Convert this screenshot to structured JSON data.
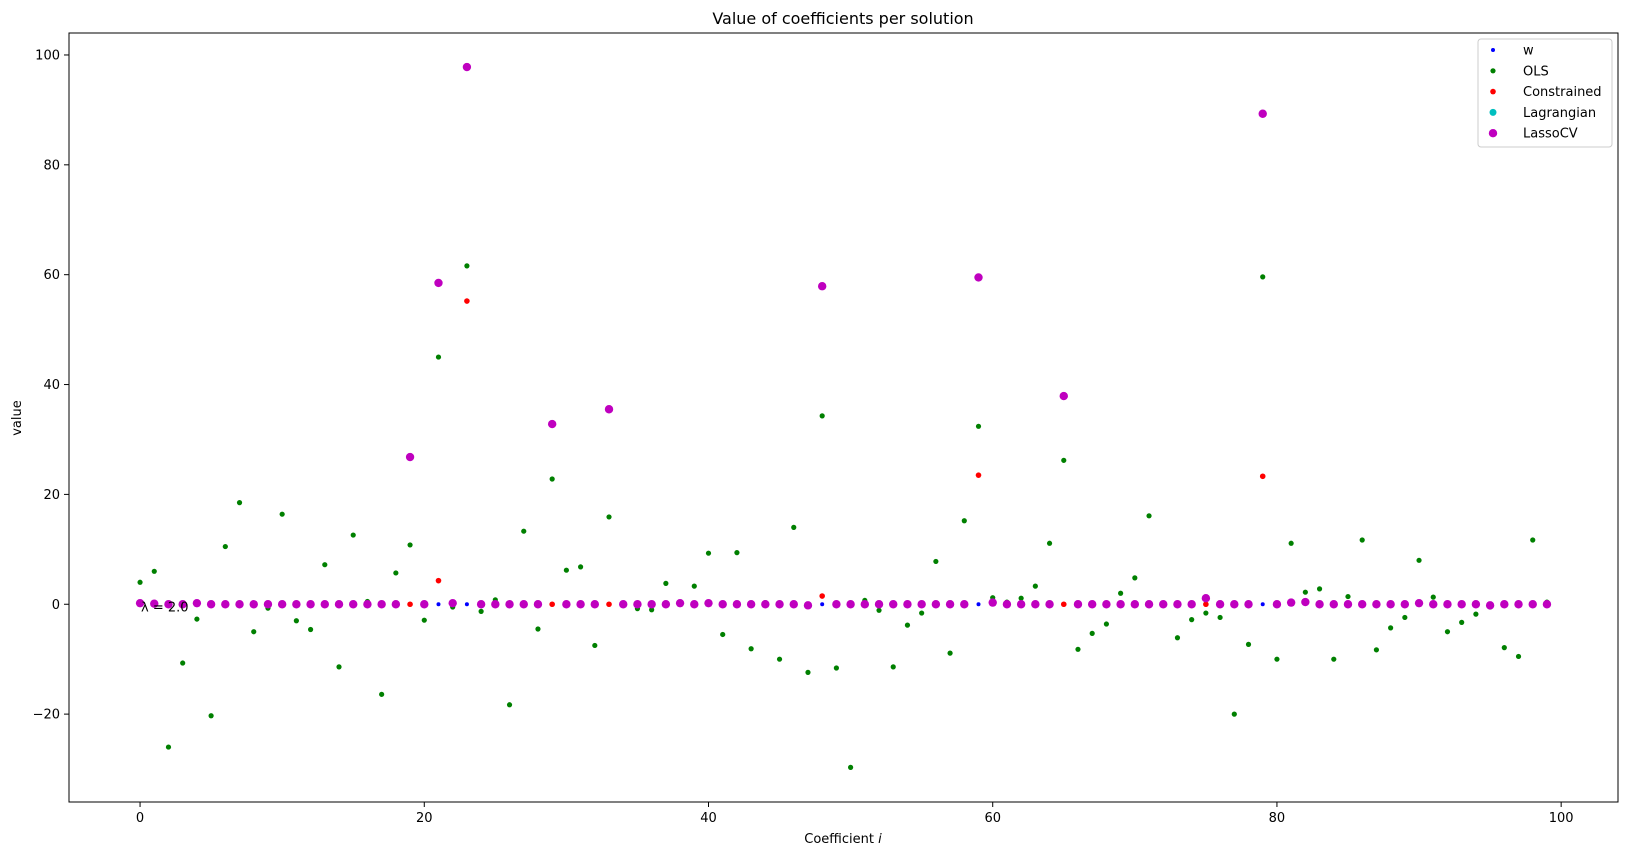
{
  "chart_data": {
    "type": "scatter",
    "title": "Value of coefficients per solution",
    "xlabel": "Coefficient ",
    "xlabel_var": "i",
    "ylabel": "value",
    "xlim": [
      -5,
      104
    ],
    "ylim": [
      -36,
      104
    ],
    "xticks": [
      0,
      20,
      40,
      60,
      80,
      100
    ],
    "xtick_labels": [
      "0",
      "20",
      "40",
      "60",
      "80",
      "100"
    ],
    "yticks": [
      -20,
      0,
      20,
      40,
      60,
      80,
      100
    ],
    "ytick_labels": [
      "−20",
      "0",
      "20",
      "40",
      "60",
      "80",
      "100"
    ],
    "grid": false,
    "legend_position": "top-right",
    "annotation": {
      "text": "λ = 2.0",
      "x": 0,
      "y": 0
    },
    "series": [
      {
        "name": "w",
        "color": "#0000ff",
        "marker_size": 2,
        "points": [
          [
            0,
            0
          ],
          [
            19,
            0
          ],
          [
            21,
            0
          ],
          [
            23,
            0
          ],
          [
            29,
            0
          ],
          [
            33,
            0
          ],
          [
            48,
            0
          ],
          [
            59,
            0
          ],
          [
            65,
            0
          ],
          [
            75,
            0
          ],
          [
            79,
            0
          ]
        ]
      },
      {
        "name": "OLS",
        "color": "#008000",
        "marker_size": 2.6,
        "points": [
          [
            0,
            4
          ],
          [
            1,
            6
          ],
          [
            2,
            -26
          ],
          [
            3,
            -10.7
          ],
          [
            4,
            -2.7
          ],
          [
            5,
            -20.3
          ],
          [
            6,
            10.5
          ],
          [
            7,
            18.5
          ],
          [
            8,
            -5
          ],
          [
            9,
            -0.7
          ],
          [
            10,
            16.4
          ],
          [
            11,
            -3
          ],
          [
            12,
            -4.6
          ],
          [
            13,
            7.2
          ],
          [
            14,
            -11.4
          ],
          [
            15,
            12.6
          ],
          [
            16,
            0.5
          ],
          [
            17,
            -16.4
          ],
          [
            18,
            5.7
          ],
          [
            19,
            10.8
          ],
          [
            20,
            -2.9
          ],
          [
            21,
            45
          ],
          [
            22,
            -0.5
          ],
          [
            23,
            61.6
          ],
          [
            24,
            -1.3
          ],
          [
            25,
            0.8
          ],
          [
            26,
            -18.3
          ],
          [
            27,
            13.3
          ],
          [
            28,
            -4.5
          ],
          [
            29,
            22.8
          ],
          [
            30,
            6.2
          ],
          [
            31,
            6.8
          ],
          [
            32,
            -7.5
          ],
          [
            33,
            15.9
          ],
          [
            34,
            0.2
          ],
          [
            35,
            -0.8
          ],
          [
            36,
            -1
          ],
          [
            37,
            3.8
          ],
          [
            38,
            0.3
          ],
          [
            39,
            3.3
          ],
          [
            40,
            9.3
          ],
          [
            41,
            -5.5
          ],
          [
            42,
            9.4
          ],
          [
            43,
            -8.1
          ],
          [
            44,
            0.3
          ],
          [
            45,
            -10
          ],
          [
            46,
            14
          ],
          [
            47,
            -12.4
          ],
          [
            48,
            34.3
          ],
          [
            49,
            -11.6
          ],
          [
            50,
            -29.7
          ],
          [
            51,
            0.7
          ],
          [
            52,
            -1.1
          ],
          [
            53,
            -11.4
          ],
          [
            54,
            -3.8
          ],
          [
            55,
            -1.6
          ],
          [
            56,
            7.8
          ],
          [
            57,
            -8.9
          ],
          [
            58,
            15.2
          ],
          [
            59,
            32.4
          ],
          [
            60,
            1.2
          ],
          [
            61,
            0.4
          ],
          [
            62,
            1.1
          ],
          [
            63,
            3.3
          ],
          [
            64,
            11.1
          ],
          [
            65,
            26.2
          ],
          [
            66,
            -8.2
          ],
          [
            67,
            -5.3
          ],
          [
            68,
            -3.6
          ],
          [
            69,
            2
          ],
          [
            70,
            4.8
          ],
          [
            71,
            16.1
          ],
          [
            72,
            0.1
          ],
          [
            73,
            -6.1
          ],
          [
            74,
            -2.8
          ],
          [
            75,
            -1.6
          ],
          [
            76,
            -2.4
          ],
          [
            77,
            -20
          ],
          [
            78,
            -7.3
          ],
          [
            79,
            59.6
          ],
          [
            80,
            -10
          ],
          [
            81,
            11.1
          ],
          [
            82,
            2.2
          ],
          [
            83,
            2.8
          ],
          [
            84,
            -10
          ],
          [
            85,
            1.4
          ],
          [
            86,
            11.7
          ],
          [
            87,
            -8.3
          ],
          [
            88,
            -4.3
          ],
          [
            89,
            -2.4
          ],
          [
            90,
            8
          ],
          [
            91,
            1.3
          ],
          [
            92,
            -5
          ],
          [
            93,
            -3.3
          ],
          [
            94,
            -1.8
          ],
          [
            95,
            -0.5
          ],
          [
            96,
            -7.9
          ],
          [
            97,
            -9.5
          ],
          [
            98,
            11.7
          ],
          [
            99,
            0.4
          ]
        ]
      },
      {
        "name": "Constrained",
        "color": "#ff0000",
        "marker_size": 2.8,
        "points": [
          [
            19,
            0
          ],
          [
            21,
            4.3
          ],
          [
            23,
            55.2
          ],
          [
            29,
            0
          ],
          [
            33,
            0
          ],
          [
            48,
            1.5
          ],
          [
            59,
            23.5
          ],
          [
            65,
            0
          ],
          [
            75,
            0
          ],
          [
            79,
            23.3
          ]
        ]
      },
      {
        "name": "Lagrangian",
        "color": "#00bfbf",
        "marker_size": 3.5,
        "points": []
      },
      {
        "name": "LassoCV",
        "color": "#bf00bf",
        "marker_size": 4.2,
        "points": [
          [
            0,
            0.2
          ],
          [
            1,
            0.1
          ],
          [
            2,
            0
          ],
          [
            3,
            0
          ],
          [
            4,
            0.2
          ],
          [
            5,
            0
          ],
          [
            6,
            0
          ],
          [
            7,
            0
          ],
          [
            8,
            0
          ],
          [
            9,
            0
          ],
          [
            10,
            0
          ],
          [
            11,
            0
          ],
          [
            12,
            0
          ],
          [
            13,
            0
          ],
          [
            14,
            0
          ],
          [
            15,
            0
          ],
          [
            16,
            0
          ],
          [
            17,
            0
          ],
          [
            18,
            0
          ],
          [
            19,
            26.8
          ],
          [
            20,
            0
          ],
          [
            21,
            58.5
          ],
          [
            22,
            0.2
          ],
          [
            23,
            97.8
          ],
          [
            24,
            0
          ],
          [
            25,
            0
          ],
          [
            26,
            0
          ],
          [
            27,
            0
          ],
          [
            28,
            0
          ],
          [
            29,
            32.8
          ],
          [
            30,
            0
          ],
          [
            31,
            0
          ],
          [
            32,
            0
          ],
          [
            33,
            35.5
          ],
          [
            34,
            0
          ],
          [
            35,
            0
          ],
          [
            36,
            0
          ],
          [
            37,
            0
          ],
          [
            38,
            0.2
          ],
          [
            39,
            0
          ],
          [
            40,
            0.2
          ],
          [
            41,
            0
          ],
          [
            42,
            0
          ],
          [
            43,
            0
          ],
          [
            44,
            0
          ],
          [
            45,
            0
          ],
          [
            46,
            0
          ],
          [
            47,
            -0.2
          ],
          [
            48,
            57.9
          ],
          [
            49,
            0
          ],
          [
            50,
            0
          ],
          [
            51,
            0
          ],
          [
            52,
            0
          ],
          [
            53,
            0
          ],
          [
            54,
            0
          ],
          [
            55,
            0
          ],
          [
            56,
            0
          ],
          [
            57,
            0
          ],
          [
            58,
            0
          ],
          [
            59,
            59.5
          ],
          [
            60,
            0.3
          ],
          [
            61,
            0
          ],
          [
            62,
            0
          ],
          [
            63,
            0
          ],
          [
            64,
            0
          ],
          [
            65,
            37.9
          ],
          [
            66,
            0
          ],
          [
            67,
            0
          ],
          [
            68,
            0
          ],
          [
            69,
            0
          ],
          [
            70,
            0
          ],
          [
            71,
            0
          ],
          [
            72,
            0
          ],
          [
            73,
            0
          ],
          [
            74,
            0
          ],
          [
            75,
            1.1
          ],
          [
            76,
            0
          ],
          [
            77,
            0
          ],
          [
            78,
            0
          ],
          [
            79,
            89.3
          ],
          [
            80,
            0
          ],
          [
            81,
            0.3
          ],
          [
            82,
            0.4
          ],
          [
            83,
            0
          ],
          [
            84,
            0
          ],
          [
            85,
            0
          ],
          [
            86,
            0
          ],
          [
            87,
            0
          ],
          [
            88,
            0
          ],
          [
            89,
            0
          ],
          [
            90,
            0.2
          ],
          [
            91,
            0
          ],
          [
            92,
            0
          ],
          [
            93,
            0
          ],
          [
            94,
            0
          ],
          [
            95,
            -0.2
          ],
          [
            96,
            0
          ],
          [
            97,
            0
          ],
          [
            98,
            0
          ],
          [
            99,
            0
          ]
        ]
      }
    ]
  }
}
